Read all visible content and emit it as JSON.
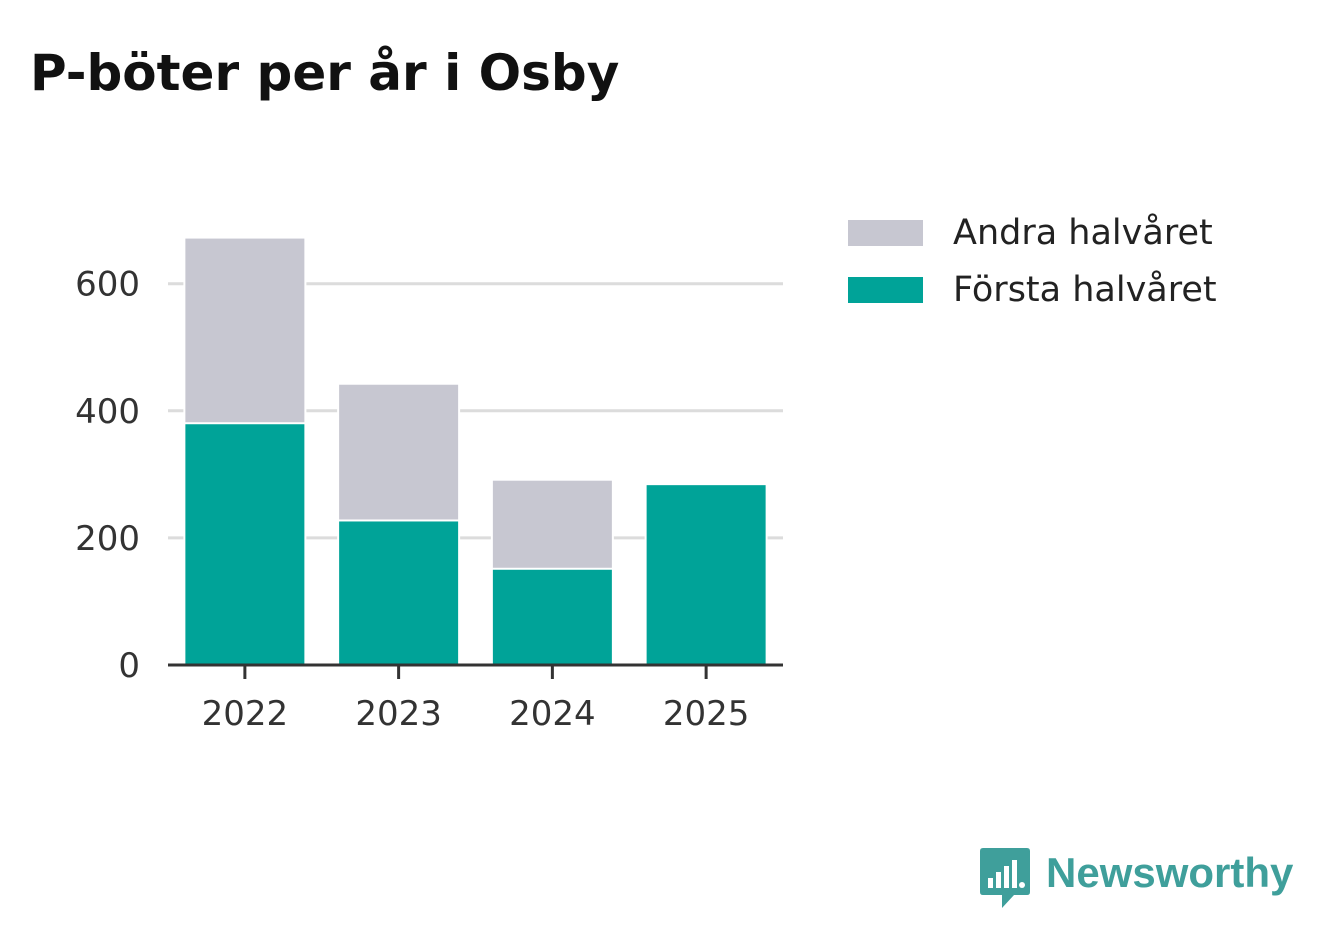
{
  "chart_data": {
    "type": "bar",
    "stacked": true,
    "title": "P-böter per år i Osby",
    "categories": [
      "2022",
      "2023",
      "2024",
      "2025"
    ],
    "series": [
      {
        "name": "Första halvåret",
        "color": "#00a398",
        "values": [
          382,
          229,
          153,
          283
        ]
      },
      {
        "name": "Andra halvåret",
        "color": "#c7c7d1",
        "values": [
          289,
          212,
          137,
          0
        ]
      }
    ],
    "legend_order": [
      "Andra halvåret",
      "Första halvåret"
    ],
    "y_ticks": [
      0,
      200,
      400,
      600
    ],
    "ylim": [
      0,
      700
    ],
    "grid": true,
    "legend_position": "top-right",
    "xlabel": "",
    "ylabel": ""
  },
  "branding": {
    "name": "Newsworthy",
    "color": "#3f9f9b"
  }
}
